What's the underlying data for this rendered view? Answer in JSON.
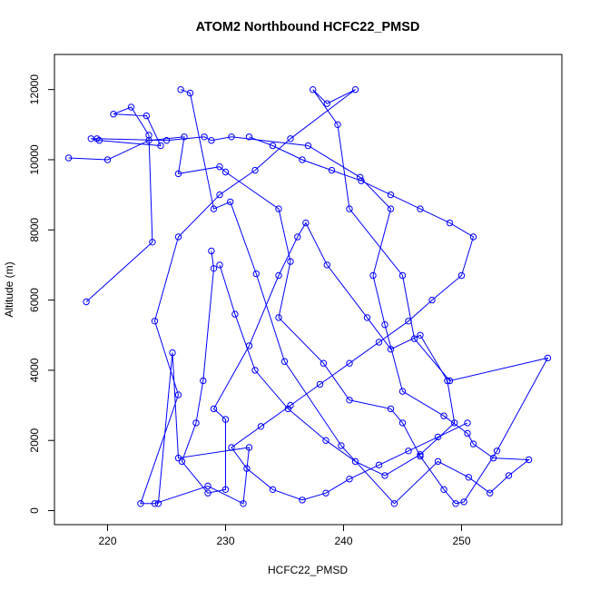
{
  "chart_data": {
    "type": "line",
    "title": "ATOM2 Northbound HCFC22_PMSD",
    "xlabel": "HCFC22_PMSD",
    "ylabel": "Altitude (m)",
    "xlim": [
      215.5,
      258.5
    ],
    "ylim": [
      -400,
      13000
    ],
    "xticks": [
      220,
      230,
      240,
      250
    ],
    "yticks": [
      0,
      2000,
      4000,
      6000,
      8000,
      10000,
      12000
    ],
    "grid": false,
    "line_color": "#0000ff",
    "marker": "open-circle",
    "series": [
      {
        "x": [
          216.7,
          220.0,
          223.5,
          226.5,
          226.0,
          229.5,
          230.0,
          234.5,
          235.5,
          234.5,
          238.3,
          240.5,
          244.0,
          245.0,
          246.5,
          248.5,
          249.5,
          250.2,
          253.0,
          257.3,
          249.0,
          246.0,
          245.0,
          240.5,
          239.5,
          237.4,
          238.6,
          241.0,
          235.5,
          232.5,
          229.5,
          226.0,
          224.0,
          226.0,
          222.8,
          224.0,
          228.5,
          231.5,
          232.0,
          226.0,
          225.5,
          224.3
        ],
        "y": [
          10050,
          10000,
          10550,
          10650,
          9600,
          9800,
          9650,
          8600,
          7100,
          5500,
          4200,
          3150,
          2900,
          2500,
          1550,
          600,
          200,
          250,
          1700,
          4350,
          3700,
          4900,
          6700,
          8600,
          11000,
          12000,
          11600,
          12000,
          10600,
          9700,
          9000,
          7800,
          5400,
          3300,
          200,
          200,
          700,
          200,
          1800,
          1500,
          4500,
          200
        ]
      },
      {
        "x": [
          218.2,
          223.8,
          223.5,
          222.0,
          220.5,
          223.3,
          224.5,
          219.3,
          218.6,
          219.1,
          225.0,
          228.2,
          228.8,
          230.5,
          237.0,
          241.4,
          244.0,
          242.5,
          243.5,
          245.0,
          248.5,
          250.5,
          251.0,
          252.7,
          255.7,
          254.0,
          252.4,
          250.6,
          248.0,
          244.3,
          239.8,
          235.0,
          232.6,
          230.4,
          229.0,
          227.0,
          226.2
        ],
        "y": [
          5950,
          7650,
          10700,
          11500,
          11300,
          11250,
          10400,
          10550,
          10600,
          10600,
          10550,
          10650,
          10550,
          10650,
          10400,
          9500,
          8600,
          6700,
          5300,
          3400,
          2700,
          2200,
          1900,
          1500,
          1450,
          1000,
          500,
          950,
          1400,
          200,
          1850,
          4250,
          6750,
          8800,
          8600,
          11900,
          12000
        ]
      },
      {
        "x": [
          228.8,
          229.0,
          228.1,
          227.5,
          226.3,
          228.5,
          230.0,
          230.0,
          229.0,
          232.0,
          234.5,
          236.1,
          236.8,
          238.6,
          242.0,
          244.0,
          246.5,
          248.8,
          249.4,
          246.5,
          243.5,
          241.0,
          238.5,
          235.3,
          232.5,
          230.8,
          229.5
        ],
        "y": [
          7400,
          6900,
          3700,
          2500,
          1400,
          500,
          600,
          2600,
          2900,
          4700,
          6700,
          7800,
          8200,
          7000,
          5500,
          4600,
          5000,
          3700,
          2500,
          1600,
          1000,
          1400,
          2000,
          2900,
          4000,
          5600,
          7000
        ]
      },
      {
        "x": [
          232.0,
          234.0,
          236.5,
          239.0,
          241.5,
          244.0,
          246.5,
          249.0,
          251.0,
          250.0,
          247.5,
          245.5,
          243.0,
          240.5,
          238.0,
          235.5,
          233.0,
          230.5,
          231.8,
          234.0,
          236.5,
          238.5,
          240.5,
          243.0,
          245.5,
          248.0,
          250.5
        ],
        "y": [
          10650,
          10400,
          10000,
          9700,
          9400,
          9000,
          8600,
          8200,
          7800,
          6700,
          6000,
          5400,
          4800,
          4200,
          3600,
          3000,
          2400,
          1800,
          1200,
          600,
          300,
          500,
          900,
          1300,
          1700,
          2100,
          2500
        ]
      }
    ]
  }
}
